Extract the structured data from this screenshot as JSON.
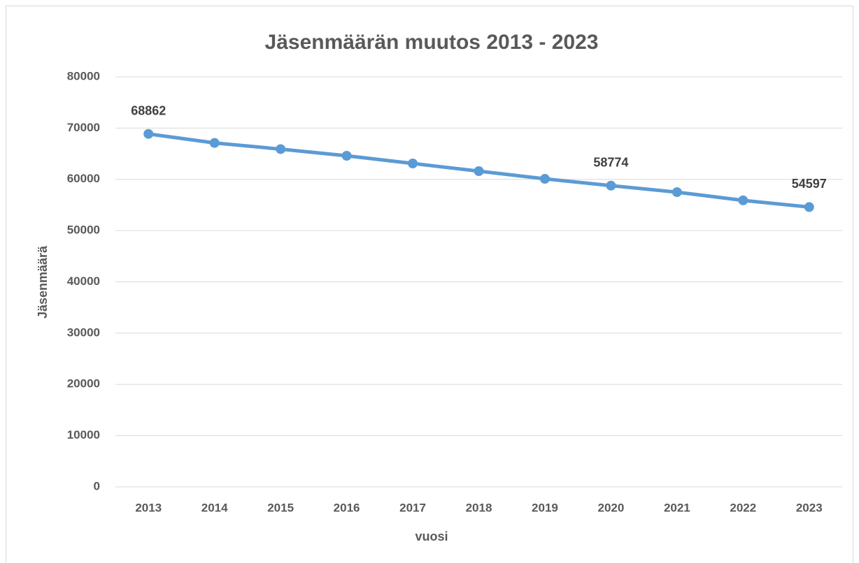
{
  "chart_data": {
    "type": "line",
    "title": "Jäsenmäärän muutos 2013 - 2023",
    "x_label": "vuosi",
    "y_label": "Jäsenmäärä",
    "categories": [
      "2013",
      "2014",
      "2015",
      "2016",
      "2017",
      "2018",
      "2019",
      "2020",
      "2021",
      "2022",
      "2023"
    ],
    "series": [
      {
        "name": "Jäsenmäärä",
        "color": "#5b9bd5",
        "values": [
          68862,
          67100,
          65900,
          64600,
          63100,
          61600,
          60100,
          58774,
          57500,
          55900,
          54597
        ],
        "value_labels": [
          "68862",
          null,
          null,
          null,
          null,
          null,
          null,
          "58774",
          null,
          null,
          "54597"
        ]
      }
    ],
    "ylim": [
      0,
      80000
    ],
    "yticks": [
      0,
      10000,
      20000,
      30000,
      40000,
      50000,
      60000,
      70000,
      80000
    ],
    "grid": true,
    "legend": false
  }
}
